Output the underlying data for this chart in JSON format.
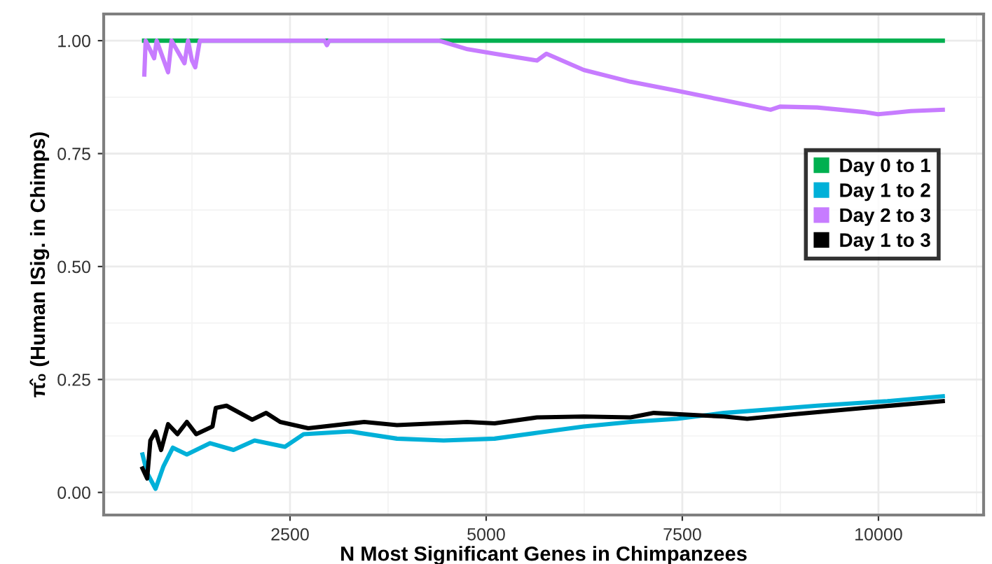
{
  "chart_data": {
    "type": "line",
    "xlabel": "N Most Significant Genes in Chimpanzees",
    "ylabel": "π̂₀ (Human ISig. in Chimps)",
    "xlim": [
      125,
      11340
    ],
    "ylim": [
      -0.05,
      1.059
    ],
    "xticks": [
      2500,
      5000,
      7500,
      10000
    ],
    "yticks": [
      {
        "value": 0,
        "label": "0.00"
      },
      {
        "value": 0.25,
        "label": "0.25"
      },
      {
        "value": 0.5,
        "label": "0.50"
      },
      {
        "value": 0.75,
        "label": "0.75"
      },
      {
        "value": 1,
        "label": "1.00"
      }
    ],
    "grid": true,
    "legend": "right",
    "line_style": "solid",
    "series": [
      {
        "name": "Day 0 to 1",
        "color": "#00b050",
        "x": [
          640,
          10820
        ],
        "values": [
          1,
          1
        ]
      },
      {
        "name": "Day 1 to 2",
        "color": "#00b0d8",
        "x": [
          620,
          679,
          786,
          887,
          1006,
          1185,
          1482,
          1780,
          2048,
          2435,
          2673,
          3268,
          3863,
          4458,
          5107,
          5648,
          6244,
          6839,
          7435,
          8030,
          8625,
          9220,
          10113,
          10820
        ],
        "values": [
          0.084,
          0.043,
          0.008,
          0.058,
          0.099,
          0.084,
          0.109,
          0.094,
          0.115,
          0.101,
          0.129,
          0.135,
          0.119,
          0.115,
          0.119,
          0.132,
          0.146,
          0.156,
          0.163,
          0.176,
          0.184,
          0.192,
          0.202,
          0.213
        ]
      },
      {
        "name": "Day 2 to 3",
        "color": "#c77cff",
        "x": [
          643,
          660,
          768,
          800,
          946,
          990,
          1155,
          1200,
          1250,
          1292,
          1350,
          2940,
          2970,
          3000,
          4400,
          4762,
          5107,
          5648,
          5768,
          6244,
          6839,
          7435,
          8030,
          8625,
          8744,
          9220,
          9815,
          9994,
          10410,
          10820
        ],
        "values": [
          0.925,
          1,
          0.961,
          1,
          0.93,
          1,
          0.95,
          1,
          0.956,
          0.941,
          1,
          1,
          0.99,
          1,
          1,
          0.981,
          0.971,
          0.956,
          0.971,
          0.935,
          0.909,
          0.889,
          0.868,
          0.847,
          0.854,
          0.852,
          0.842,
          0.837,
          0.844,
          0.847
        ]
      },
      {
        "name": "Day 1 to 3",
        "color": "#000000",
        "x": [
          620,
          679,
          720,
          786,
          857,
          946,
          1065,
          1185,
          1304,
          1512,
          1554,
          1690,
          2018,
          2196,
          2375,
          2732,
          3446,
          3863,
          4756,
          5107,
          5648,
          6244,
          6839,
          7137,
          8030,
          8327,
          8923,
          9815,
          10820
        ],
        "values": [
          0.053,
          0.031,
          0.115,
          0.135,
          0.094,
          0.151,
          0.129,
          0.156,
          0.129,
          0.146,
          0.187,
          0.192,
          0.161,
          0.176,
          0.156,
          0.142,
          0.156,
          0.149,
          0.156,
          0.153,
          0.166,
          0.168,
          0.166,
          0.176,
          0.168,
          0.163,
          0.173,
          0.187,
          0.202
        ]
      }
    ]
  }
}
